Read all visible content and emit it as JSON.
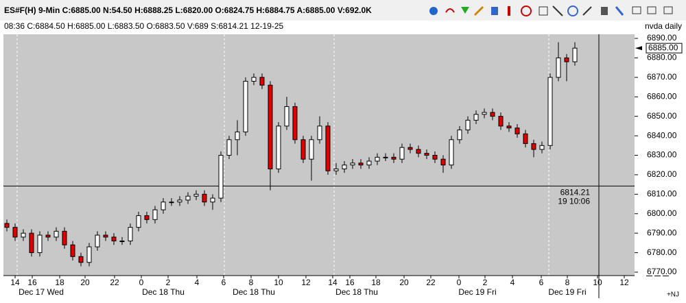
{
  "header": {
    "quote": "ES#F(H)  9-Min  C:6885.00  N:54.50  H:6888.25  L:6820.00  O:6824.75  H:6884.75  A:6885.00  V:692.0K",
    "info": "08:36  C:6884.50  H:6885.00  L:6883.50  O:6883.50  V:689  S:6814.21  12-19-25",
    "study": "nvda daily",
    "corner": "+NJ"
  },
  "chart_data": {
    "type": "candlestick",
    "open": [
      6795,
      6793,
      6788,
      6790,
      6780,
      6789,
      6788,
      6791,
      6784,
      6778,
      6775,
      6783,
      6789,
      6788,
      6786,
      6786,
      6793,
      6799,
      6797,
      6802,
      6806,
      6806,
      6807,
      6809,
      6810,
      6806,
      6808,
      6830,
      6838,
      6842,
      6868,
      6870,
      6866,
      6823,
      6845,
      6855,
      6838,
      6828,
      6838,
      6845,
      6822,
      6823,
      6825,
      6826,
      6825,
      6827,
      6829,
      6829,
      6828,
      6834,
      6833,
      6831,
      6830,
      6828,
      6825,
      6838,
      6843,
      6848,
      6851,
      6852,
      6850,
      6845,
      6844,
      6841,
      6836,
      6833,
      6835,
      6870,
      6880,
      6878
    ],
    "high": [
      6797,
      6795,
      6792,
      6792,
      6791,
      6791,
      6793,
      6793,
      6786,
      6780,
      6785,
      6791,
      6791,
      6790,
      6788,
      6795,
      6801,
      6801,
      6804,
      6808,
      6808,
      6809,
      6811,
      6812,
      6812,
      6810,
      6832,
      6840,
      6848,
      6870,
      6872,
      6872,
      6868,
      6847,
      6860,
      6857,
      6840,
      6840,
      6850,
      6847,
      6826,
      6827,
      6828,
      6828,
      6829,
      6831,
      6831,
      6831,
      6836,
      6836,
      6835,
      6833,
      6832,
      6830,
      6840,
      6845,
      6850,
      6853,
      6854,
      6854,
      6852,
      6847,
      6846,
      6843,
      6838,
      6837,
      6872,
      6888,
      6882,
      6888
    ],
    "low": [
      6791,
      6786,
      6786,
      6778,
      6778,
      6786,
      6786,
      6782,
      6776,
      6773,
      6773,
      6781,
      6786,
      6784,
      6784,
      6784,
      6791,
      6795,
      6795,
      6800,
      6804,
      6804,
      6805,
      6807,
      6804,
      6802,
      6806,
      6828,
      6830,
      6840,
      6866,
      6864,
      6812,
      6821,
      6843,
      6836,
      6826,
      6817,
      6836,
      6820,
      6820,
      6821,
      6823,
      6823,
      6823,
      6825,
      6827,
      6826,
      6826,
      6831,
      6829,
      6828,
      6826,
      6821,
      6823,
      6836,
      6841,
      6846,
      6849,
      6848,
      6843,
      6842,
      6839,
      6834,
      6829,
      6831,
      6833,
      6868,
      6868,
      6876
    ],
    "close": [
      6793,
      6788,
      6790,
      6780,
      6789,
      6788,
      6791,
      6784,
      6778,
      6775,
      6783,
      6789,
      6788,
      6786,
      6786,
      6793,
      6799,
      6797,
      6802,
      6806,
      6806,
      6807,
      6809,
      6810,
      6806,
      6808,
      6830,
      6838,
      6842,
      6868,
      6870,
      6866,
      6823,
      6845,
      6855,
      6838,
      6828,
      6838,
      6845,
      6822,
      6823,
      6825,
      6826,
      6825,
      6827,
      6829,
      6829,
      6828,
      6834,
      6833,
      6831,
      6830,
      6828,
      6825,
      6838,
      6843,
      6848,
      6851,
      6852,
      6850,
      6845,
      6844,
      6841,
      6836,
      6833,
      6835,
      6870,
      6880,
      6878,
      6885
    ],
    "up_color": "#ffffff",
    "down_color": "#e00000",
    "ylim": [
      6770,
      6890
    ],
    "yticks": [
      {
        "value": 6770,
        "label": "6770.00"
      },
      {
        "value": 6780,
        "label": "6780.00"
      },
      {
        "value": 6790,
        "label": "6790.00"
      },
      {
        "value": 6800,
        "label": "6800.00"
      },
      {
        "value": 6810,
        "label": "6810.00"
      },
      {
        "value": 6820,
        "label": "6820.00"
      },
      {
        "value": 6830,
        "label": "6830.00"
      },
      {
        "value": 6840,
        "label": "6840.00"
      },
      {
        "value": 6850,
        "label": "6850.00"
      },
      {
        "value": 6860,
        "label": "6860.00"
      },
      {
        "value": 6870,
        "label": "6870.00"
      },
      {
        "value": 6880,
        "label": "6880.00"
      },
      {
        "value": 6890,
        "label": "6890.00"
      }
    ],
    "xticks": [
      "14",
      "16",
      "18",
      "20",
      "22",
      "0",
      "2",
      "4",
      "6",
      "8",
      "10",
      "12",
      "14",
      "16",
      "18",
      "20",
      "22",
      "0",
      "2",
      "4",
      "6",
      "8",
      "10",
      "12"
    ],
    "date_labels": [
      "Dec 17 Wed",
      "Dec 18 Thu",
      "Dec 18 Thu",
      "Dec 18 Thu",
      "Dec 19 Fri",
      "Dec 19 Fri"
    ],
    "last_price": {
      "value": 6885,
      "label": "6885.00"
    },
    "crosshair": {
      "value": 6814.21,
      "time": "19 10:06"
    }
  }
}
